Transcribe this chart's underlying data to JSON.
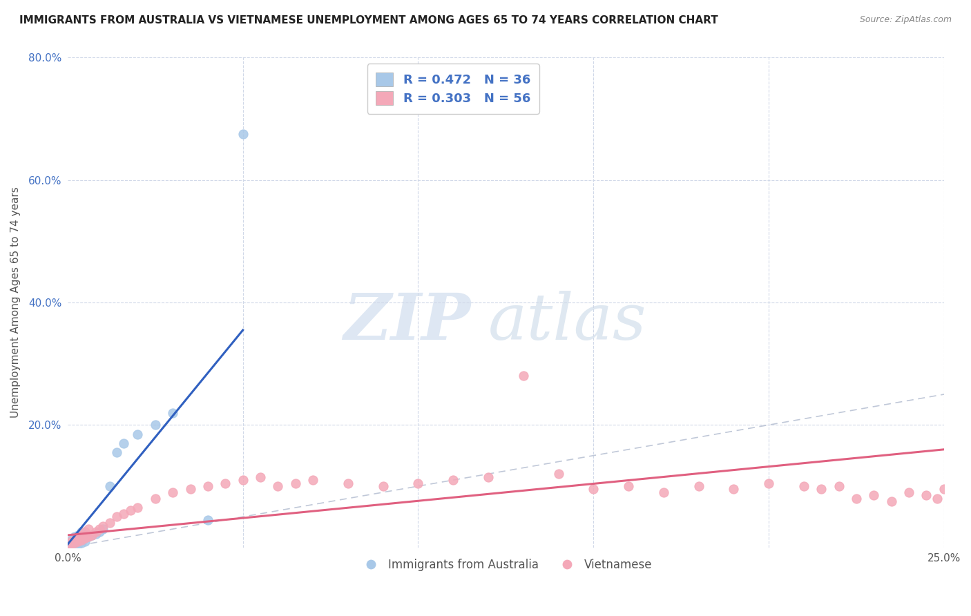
{
  "title": "IMMIGRANTS FROM AUSTRALIA VS VIETNAMESE UNEMPLOYMENT AMONG AGES 65 TO 74 YEARS CORRELATION CHART",
  "source": "Source: ZipAtlas.com",
  "ylabel": "Unemployment Among Ages 65 to 74 years",
  "xlim": [
    0,
    0.25
  ],
  "ylim": [
    0,
    0.8
  ],
  "legend_r1": "R = 0.472",
  "legend_n1": "N = 36",
  "legend_r2": "R = 0.303",
  "legend_n2": "N = 56",
  "watermark_zip": "ZIP",
  "watermark_atlas": "atlas",
  "blue_color": "#a8c8e8",
  "pink_color": "#f4a8b8",
  "blue_line_color": "#3060c0",
  "pink_line_color": "#e06080",
  "ref_line_color": "#c0c8d8",
  "australia_x": [
    0.0005,
    0.001,
    0.001,
    0.001,
    0.001,
    0.002,
    0.002,
    0.002,
    0.002,
    0.002,
    0.002,
    0.003,
    0.003,
    0.003,
    0.003,
    0.003,
    0.004,
    0.004,
    0.004,
    0.004,
    0.005,
    0.005,
    0.005,
    0.006,
    0.007,
    0.008,
    0.009,
    0.01,
    0.012,
    0.014,
    0.016,
    0.02,
    0.025,
    0.03,
    0.04,
    0.05
  ],
  "australia_y": [
    0.005,
    0.005,
    0.008,
    0.01,
    0.012,
    0.005,
    0.008,
    0.01,
    0.012,
    0.015,
    0.018,
    0.005,
    0.008,
    0.01,
    0.015,
    0.02,
    0.008,
    0.012,
    0.018,
    0.025,
    0.01,
    0.015,
    0.02,
    0.018,
    0.02,
    0.022,
    0.025,
    0.03,
    0.1,
    0.155,
    0.17,
    0.185,
    0.2,
    0.22,
    0.045,
    0.675
  ],
  "vietnamese_x": [
    0.0005,
    0.001,
    0.001,
    0.002,
    0.002,
    0.003,
    0.003,
    0.004,
    0.004,
    0.005,
    0.005,
    0.006,
    0.006,
    0.007,
    0.008,
    0.009,
    0.01,
    0.012,
    0.014,
    0.016,
    0.018,
    0.02,
    0.025,
    0.03,
    0.035,
    0.04,
    0.045,
    0.05,
    0.055,
    0.06,
    0.065,
    0.07,
    0.08,
    0.09,
    0.1,
    0.11,
    0.12,
    0.13,
    0.14,
    0.15,
    0.16,
    0.17,
    0.18,
    0.19,
    0.2,
    0.21,
    0.215,
    0.22,
    0.225,
    0.23,
    0.235,
    0.24,
    0.245,
    0.248,
    0.25,
    0.252
  ],
  "vietnamese_y": [
    0.005,
    0.005,
    0.01,
    0.008,
    0.012,
    0.01,
    0.015,
    0.012,
    0.02,
    0.015,
    0.025,
    0.018,
    0.03,
    0.02,
    0.025,
    0.03,
    0.035,
    0.04,
    0.05,
    0.055,
    0.06,
    0.065,
    0.08,
    0.09,
    0.095,
    0.1,
    0.105,
    0.11,
    0.115,
    0.1,
    0.105,
    0.11,
    0.105,
    0.1,
    0.105,
    0.11,
    0.115,
    0.28,
    0.12,
    0.095,
    0.1,
    0.09,
    0.1,
    0.095,
    0.105,
    0.1,
    0.095,
    0.1,
    0.08,
    0.085,
    0.075,
    0.09,
    0.085,
    0.08,
    0.095,
    0.07
  ],
  "blue_trend_x0": 0.0,
  "blue_trend_y0": 0.005,
  "blue_trend_x1": 0.05,
  "blue_trend_y1": 0.355,
  "pink_trend_x0": 0.0,
  "pink_trend_y0": 0.02,
  "pink_trend_x1": 0.25,
  "pink_trend_y1": 0.16
}
